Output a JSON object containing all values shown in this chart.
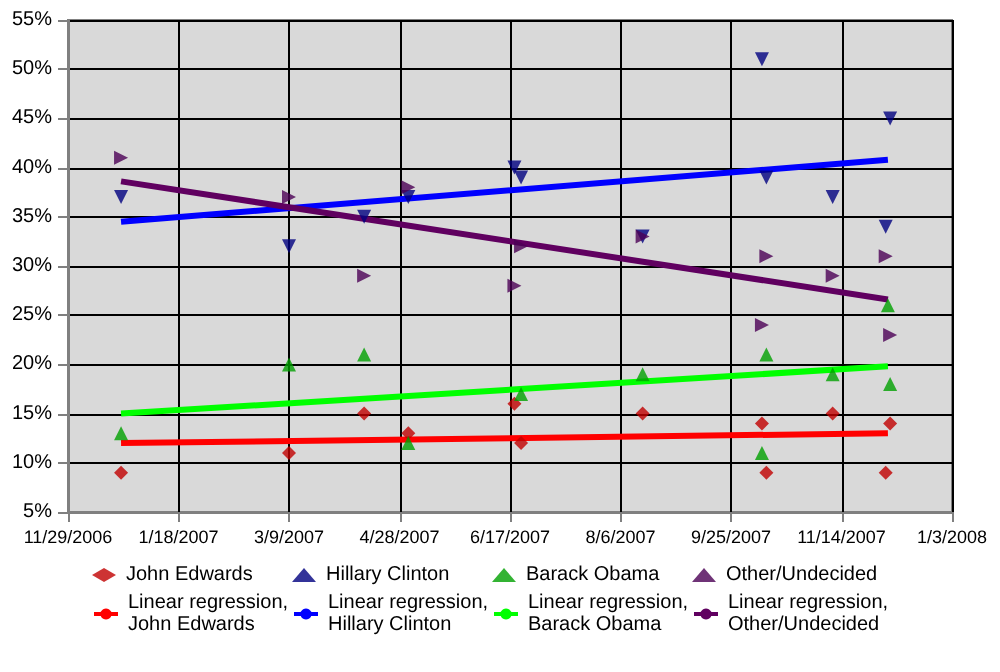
{
  "chart_data": {
    "type": "scatter",
    "xlim": [
      "2006-11-29",
      "2008-01-03"
    ],
    "xticks": [
      {
        "value": "2006-11-29",
        "label": "11/29/2006"
      },
      {
        "value": "2007-01-18",
        "label": "1/18/2007"
      },
      {
        "value": "2007-03-09",
        "label": "3/9/2007"
      },
      {
        "value": "2007-04-28",
        "label": "4/28/2007"
      },
      {
        "value": "2007-06-17",
        "label": "6/17/2007"
      },
      {
        "value": "2007-08-06",
        "label": "8/6/2007"
      },
      {
        "value": "2007-09-25",
        "label": "9/25/2007"
      },
      {
        "value": "2007-11-14",
        "label": "11/14/2007"
      },
      {
        "value": "2008-01-03",
        "label": "1/3/2008"
      }
    ],
    "ylim": [
      5,
      55
    ],
    "yticks": [
      {
        "value": 5,
        "label": "5%"
      },
      {
        "value": 10,
        "label": "10%"
      },
      {
        "value": 15,
        "label": "15%"
      },
      {
        "value": 20,
        "label": "20%"
      },
      {
        "value": 25,
        "label": "25%"
      },
      {
        "value": 30,
        "label": "30%"
      },
      {
        "value": 35,
        "label": "35%"
      },
      {
        "value": 40,
        "label": "40%"
      },
      {
        "value": 45,
        "label": "45%"
      },
      {
        "value": 50,
        "label": "50%"
      },
      {
        "value": 55,
        "label": "55%"
      }
    ],
    "grid": true,
    "legend": "bottom",
    "series": [
      {
        "name": "John Edwards",
        "marker": "diamond",
        "color": "#c00000",
        "x": [
          "2006-12-23",
          "2007-03-09",
          "2007-04-12",
          "2007-05-02",
          "2007-06-19",
          "2007-06-22",
          "2007-08-16",
          "2007-10-09",
          "2007-10-11",
          "2007-11-10",
          "2007-12-04",
          "2007-12-06"
        ],
        "values": [
          9,
          11,
          15,
          13,
          16,
          12,
          15,
          14,
          9,
          15,
          9,
          14
        ]
      },
      {
        "name": "Hillary Clinton",
        "marker": "triangle-down",
        "color": "#000080",
        "x": [
          "2006-12-23",
          "2007-03-09",
          "2007-04-12",
          "2007-05-02",
          "2007-06-19",
          "2007-06-22",
          "2007-08-16",
          "2007-10-09",
          "2007-10-11",
          "2007-11-10",
          "2007-12-04",
          "2007-12-06"
        ],
        "values": [
          37,
          32,
          35,
          37,
          40,
          39,
          33,
          51,
          39,
          37,
          34,
          45
        ]
      },
      {
        "name": "Barack Obama",
        "marker": "triangle",
        "color": "#00a000",
        "x": [
          "2006-12-23",
          "2007-03-09",
          "2007-04-12",
          "2007-05-02",
          "2007-06-22",
          "2007-08-16",
          "2007-10-09",
          "2007-10-11",
          "2007-11-10",
          "2007-12-05",
          "2007-12-06"
        ],
        "values": [
          13,
          20,
          21,
          12,
          17,
          19,
          11,
          21,
          19,
          26,
          18
        ]
      },
      {
        "name": "Other/Undecided",
        "marker": "triangle-right",
        "color": "#4b0055",
        "x": [
          "2006-12-23",
          "2007-03-09",
          "2007-04-12",
          "2007-05-02",
          "2007-06-19",
          "2007-06-22",
          "2007-08-16",
          "2007-10-09",
          "2007-10-11",
          "2007-11-10",
          "2007-12-04",
          "2007-12-06"
        ],
        "values": [
          41,
          37,
          29,
          38,
          28,
          32,
          33,
          24,
          31,
          29,
          31,
          23
        ]
      },
      {
        "name": "Linear regression, John Edwards",
        "type": "line",
        "marker": "none",
        "color": "#ff0000",
        "x": [
          "2006-12-23",
          "2007-12-05"
        ],
        "values": [
          12,
          13
        ]
      },
      {
        "name": "Linear regression, Hillary Clinton",
        "type": "line",
        "marker": "none",
        "color": "#0000ff",
        "x": [
          "2006-12-23",
          "2007-12-05"
        ],
        "values": [
          34.5,
          40.8
        ]
      },
      {
        "name": "Linear regression, Barack Obama",
        "type": "line",
        "marker": "none",
        "color": "#00ff00",
        "x": [
          "2006-12-23",
          "2007-12-05"
        ],
        "values": [
          15,
          19.8
        ]
      },
      {
        "name": "Linear regression, Other/Undecided",
        "type": "line",
        "marker": "none",
        "color": "#600060",
        "x": [
          "2006-12-23",
          "2007-12-05"
        ],
        "values": [
          38.6,
          26.6
        ]
      }
    ]
  }
}
